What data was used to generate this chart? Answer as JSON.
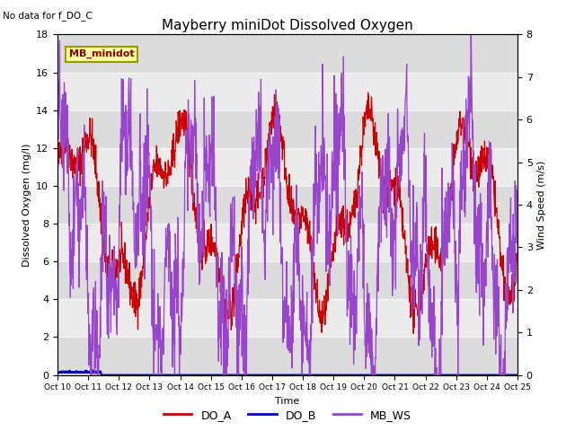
{
  "title": "Mayberry miniDot Dissolved Oxygen",
  "subtitle": "No data for f_DO_C",
  "xlabel": "Time",
  "ylabel_left": "Dissolved Oxygen (mg/l)",
  "ylabel_right": "Wind Speed (m/s)",
  "ylim_left": [
    0,
    18
  ],
  "ylim_right": [
    0.0,
    8.0
  ],
  "yticks_left": [
    0,
    2,
    4,
    6,
    8,
    10,
    12,
    14,
    16,
    18
  ],
  "yticks_right": [
    0.0,
    1.0,
    2.0,
    3.0,
    4.0,
    5.0,
    6.0,
    7.0,
    8.0
  ],
  "xtick_labels": [
    "Oct 10",
    "Oct 11",
    "Oct 12",
    "Oct 13",
    "Oct 14",
    "Oct 15",
    "Oct 16",
    "Oct 17",
    "Oct 18",
    "Oct 19",
    "Oct 20",
    "Oct 21",
    "Oct 22",
    "Oct 23",
    "Oct 24",
    "Oct 25"
  ],
  "color_DO_A": "#cc0000",
  "color_DO_B": "#0000bb",
  "color_MB_WS": "#9944cc",
  "band_dark": "#dcdcdc",
  "band_light": "#ebebeb",
  "legend_box_color": "#ffff99",
  "legend_box_edge": "#999900",
  "legend_label": "MB_minidot",
  "legend_items": [
    "DO_A",
    "DO_B",
    "MB_WS"
  ],
  "num_points": 1500,
  "figwidth": 6.4,
  "figheight": 4.8,
  "dpi": 100
}
